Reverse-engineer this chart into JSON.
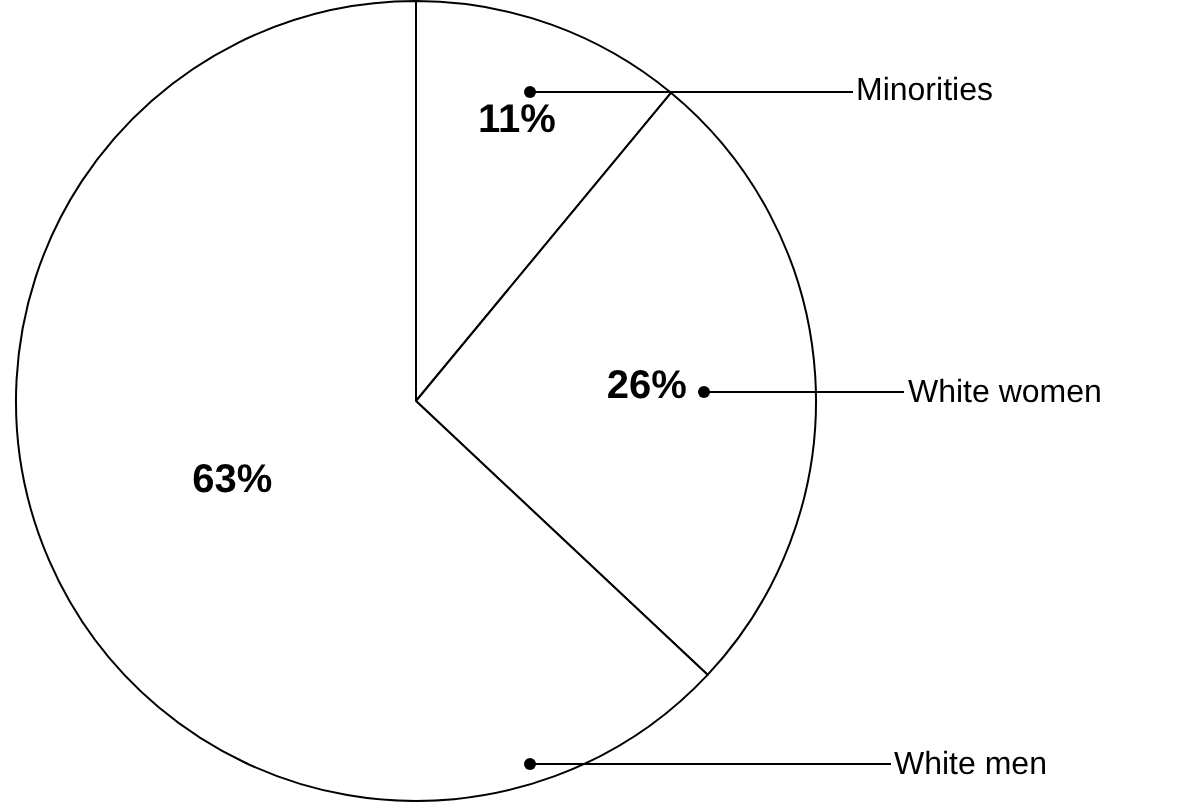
{
  "chart_data": {
    "type": "pie",
    "categories": [
      "Minorities",
      "White women",
      "White men"
    ],
    "values": [
      11,
      26,
      63
    ],
    "colors": [
      "#ffffff",
      "#ffffff",
      "#ffffff"
    ],
    "value_labels": [
      "11%",
      "26%",
      "63%"
    ],
    "legend": false
  }
}
